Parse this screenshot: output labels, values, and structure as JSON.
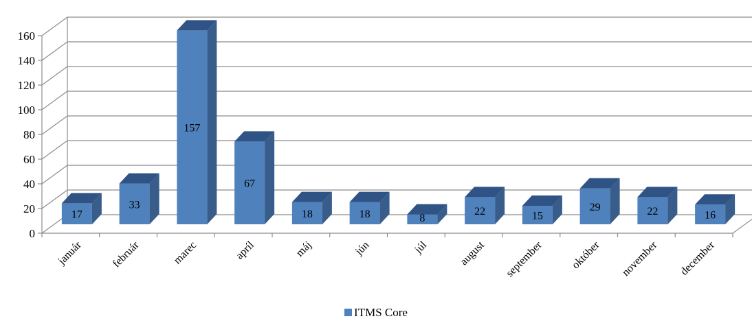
{
  "chart_data": {
    "type": "bar",
    "style": "3d-column",
    "categories": [
      "január",
      "február",
      "marec",
      "apríl",
      "máj",
      "jún",
      "júl",
      "august",
      "september",
      "október",
      "november",
      "december"
    ],
    "series": [
      {
        "name": "ITMS Core",
        "values": [
          17,
          33,
          157,
          67,
          18,
          18,
          8,
          22,
          15,
          29,
          22,
          16
        ]
      }
    ],
    "ylim": [
      0,
      160
    ],
    "yticks": [
      0,
      20,
      40,
      60,
      80,
      100,
      120,
      140,
      160
    ],
    "grid": true,
    "legend": "bottom-center",
    "colors": {
      "front": "#4f81bd",
      "side": "#385d8a",
      "top": "#2f5384",
      "grid": "#8c8c8c"
    }
  }
}
